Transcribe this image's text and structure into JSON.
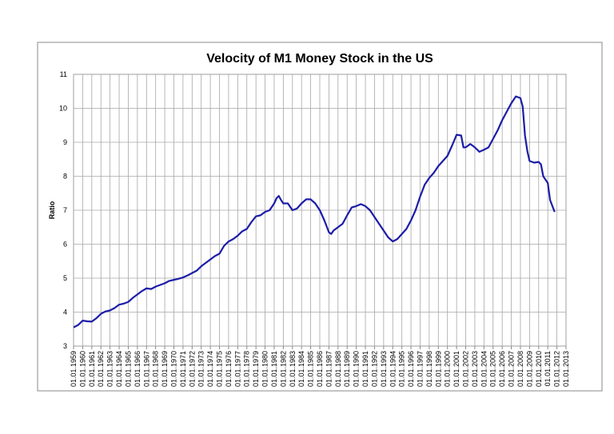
{
  "chart_data": {
    "type": "line",
    "title": "Velocity of M1 Money Stock in the US",
    "y_label": "Ratio",
    "x": [
      1959,
      1959.5,
      1960,
      1960.5,
      1961,
      1961.5,
      1962,
      1962.5,
      1963,
      1963.5,
      1964,
      1964.5,
      1965,
      1965.5,
      1966,
      1966.5,
      1967,
      1967.5,
      1968,
      1968.5,
      1969,
      1969.5,
      1970,
      1970.5,
      1971,
      1971.5,
      1972,
      1972.5,
      1973,
      1973.5,
      1974,
      1974.5,
      1975,
      1975.5,
      1976,
      1976.5,
      1977,
      1977.5,
      1978,
      1978.5,
      1979,
      1979.5,
      1980,
      1980.5,
      1981,
      1981.25,
      1981.5,
      1981.75,
      1982,
      1982.5,
      1983,
      1983.5,
      1984,
      1984.5,
      1985,
      1985.5,
      1986,
      1986.5,
      1987,
      1987.25,
      1987.5,
      1988,
      1988.5,
      1989,
      1989.5,
      1990,
      1990.5,
      1991,
      1991.5,
      1992,
      1992.5,
      1993,
      1993.5,
      1994,
      1994.5,
      1995,
      1995.5,
      1996,
      1996.5,
      1997,
      1997.5,
      1998,
      1998.5,
      1999,
      1999.5,
      2000,
      2000.5,
      2001,
      2001.5,
      2001.75,
      2002,
      2002.5,
      2003,
      2003.5,
      2004,
      2004.5,
      2005,
      2005.5,
      2006,
      2006.5,
      2007,
      2007.5,
      2008,
      2008.25,
      2008.5,
      2008.75,
      2009,
      2009.5,
      2010,
      2010.25,
      2010.5,
      2011,
      2011.25,
      2011.75
    ],
    "series": [
      {
        "color": "#1c1ca8",
        "values": [
          3.55,
          3.62,
          3.75,
          3.73,
          3.72,
          3.82,
          3.95,
          4.02,
          4.05,
          4.12,
          4.22,
          4.25,
          4.3,
          4.42,
          4.52,
          4.62,
          4.7,
          4.68,
          4.75,
          4.8,
          4.85,
          4.92,
          4.95,
          4.98,
          5.02,
          5.08,
          5.15,
          5.22,
          5.35,
          5.45,
          5.55,
          5.65,
          5.72,
          5.95,
          6.08,
          6.15,
          6.25,
          6.38,
          6.45,
          6.65,
          6.82,
          6.85,
          6.95,
          7.0,
          7.2,
          7.35,
          7.42,
          7.3,
          7.2,
          7.2,
          7.0,
          7.05,
          7.2,
          7.32,
          7.32,
          7.2,
          7.0,
          6.7,
          6.35,
          6.3,
          6.4,
          6.5,
          6.6,
          6.85,
          7.08,
          7.12,
          7.18,
          7.12,
          7.0,
          6.8,
          6.6,
          6.4,
          6.2,
          6.08,
          6.15,
          6.3,
          6.45,
          6.7,
          7.0,
          7.4,
          7.75,
          7.95,
          8.1,
          8.3,
          8.45,
          8.6,
          8.9,
          9.22,
          9.2,
          8.85,
          8.85,
          8.95,
          8.85,
          8.72,
          8.78,
          8.85,
          9.1,
          9.35,
          9.65,
          9.9,
          10.15,
          10.35,
          10.3,
          10.05,
          9.2,
          8.75,
          8.45,
          8.4,
          8.42,
          8.35,
          8.0,
          7.8,
          7.3,
          6.95
        ]
      }
    ],
    "xlim": [
      1959,
      2013
    ],
    "ylim": [
      3,
      11
    ],
    "yticks": [
      3,
      4,
      5,
      6,
      7,
      8,
      9,
      10,
      11
    ],
    "grid": true,
    "xticks": [
      {
        "value": 1959,
        "label": "01.01.1959"
      },
      {
        "value": 1960,
        "label": "01.01.1960"
      },
      {
        "value": 1961,
        "label": "01.01.1961"
      },
      {
        "value": 1962,
        "label": "01.01.1962"
      },
      {
        "value": 1963,
        "label": "01.01.1963"
      },
      {
        "value": 1964,
        "label": "01.01.1964"
      },
      {
        "value": 1965,
        "label": "01.01.1965"
      },
      {
        "value": 1966,
        "label": "01.01.1966"
      },
      {
        "value": 1967,
        "label": "01.01.1967"
      },
      {
        "value": 1968,
        "label": "01.01.1968"
      },
      {
        "value": 1969,
        "label": "01.01.1969"
      },
      {
        "value": 1970,
        "label": "01.01.1970"
      },
      {
        "value": 1971,
        "label": "01.01.1971"
      },
      {
        "value": 1972,
        "label": "01.01.1972"
      },
      {
        "value": 1973,
        "label": "01.01.1973"
      },
      {
        "value": 1974,
        "label": "01.01.1974"
      },
      {
        "value": 1975,
        "label": "01.01.1975"
      },
      {
        "value": 1976,
        "label": "01.01.1976"
      },
      {
        "value": 1977,
        "label": "01.01.1977"
      },
      {
        "value": 1978,
        "label": "01.01.1978"
      },
      {
        "value": 1979,
        "label": "01.01.1979"
      },
      {
        "value": 1980,
        "label": "01.01.1980"
      },
      {
        "value": 1981,
        "label": "01.01.1981"
      },
      {
        "value": 1982,
        "label": "01.01.1982"
      },
      {
        "value": 1983,
        "label": "01.01.1983"
      },
      {
        "value": 1984,
        "label": "01.01.1984"
      },
      {
        "value": 1985,
        "label": "01.01.1985"
      },
      {
        "value": 1986,
        "label": "01.01.1986"
      },
      {
        "value": 1987,
        "label": "01.01.1987"
      },
      {
        "value": 1988,
        "label": "01.01.1988"
      },
      {
        "value": 1989,
        "label": "01.01.1989"
      },
      {
        "value": 1990,
        "label": "01.01.1990"
      },
      {
        "value": 1991,
        "label": "01.01.1991"
      },
      {
        "value": 1992,
        "label": "01.01.1992"
      },
      {
        "value": 1993,
        "label": "01.01.1993"
      },
      {
        "value": 1994,
        "label": "01.01.1994"
      },
      {
        "value": 1995,
        "label": "01.01.1995"
      },
      {
        "value": 1996,
        "label": "01.01.1996"
      },
      {
        "value": 1997,
        "label": "01.01.1997"
      },
      {
        "value": 1998,
        "label": "01.01.1998"
      },
      {
        "value": 1999,
        "label": "01.01.1999"
      },
      {
        "value": 2000,
        "label": "01.01.2000"
      },
      {
        "value": 2001,
        "label": "01.01.2001"
      },
      {
        "value": 2002,
        "label": "01.01.2002"
      },
      {
        "value": 2003,
        "label": "01.01.2003"
      },
      {
        "value": 2004,
        "label": "01.01.2004"
      },
      {
        "value": 2005,
        "label": "01.01.2005"
      },
      {
        "value": 2006,
        "label": "01.01.2006"
      },
      {
        "value": 2007,
        "label": "01.01.2007"
      },
      {
        "value": 2008,
        "label": "01.01.2008"
      },
      {
        "value": 2009,
        "label": "01.01.2009"
      },
      {
        "value": 2010,
        "label": "01.01.2010"
      },
      {
        "value": 2011,
        "label": "01.01.2011"
      },
      {
        "value": 2012,
        "label": "01.01.2012"
      },
      {
        "value": 2013,
        "label": "01.01.2013"
      }
    ]
  }
}
